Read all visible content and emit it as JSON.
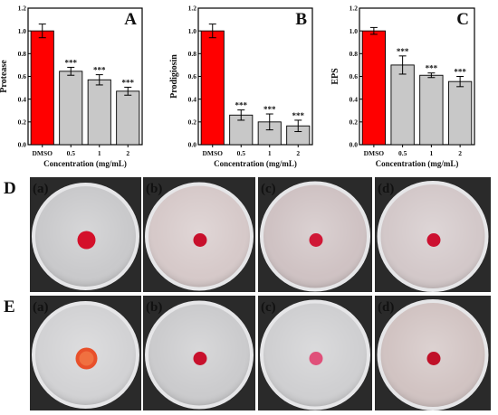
{
  "chart_data": [
    {
      "type": "bar",
      "panel_label": "A",
      "ylabel": "Protease",
      "xlabel": "Concentration (mg/mL)",
      "categories": [
        "DMSO",
        "0.5",
        "1",
        "2"
      ],
      "values": [
        1.0,
        0.645,
        0.57,
        0.47
      ],
      "errors": [
        0.06,
        0.035,
        0.045,
        0.035
      ],
      "significance": [
        "",
        "***",
        "***",
        "***"
      ],
      "ylim": [
        0,
        1.2
      ],
      "yticks": [
        "0.0",
        "0.2",
        "0.4",
        "0.6",
        "0.8",
        "1.0",
        "1.2"
      ],
      "colors": [
        "#ff0000",
        "#c8c8c8",
        "#c8c8c8",
        "#c8c8c8"
      ]
    },
    {
      "type": "bar",
      "panel_label": "B",
      "ylabel": "Prodigiosin",
      "xlabel": "Concentration (mg/mL)",
      "categories": [
        "DMSO",
        "0.5",
        "1",
        "2"
      ],
      "values": [
        1.0,
        0.26,
        0.2,
        0.165
      ],
      "errors": [
        0.06,
        0.045,
        0.07,
        0.05
      ],
      "significance": [
        "",
        "***",
        "***",
        "***"
      ],
      "ylim": [
        0,
        1.2
      ],
      "yticks": [
        "0.0",
        "0.2",
        "0.4",
        "0.6",
        "0.8",
        "1.0",
        "1.2"
      ],
      "colors": [
        "#ff0000",
        "#c8c8c8",
        "#c8c8c8",
        "#c8c8c8"
      ]
    },
    {
      "type": "bar",
      "panel_label": "C",
      "ylabel": "EPS",
      "xlabel": "Concentration (mg/mL)",
      "categories": [
        "DMSO",
        "0.5",
        "1",
        "2"
      ],
      "values": [
        1.0,
        0.7,
        0.61,
        0.555
      ],
      "errors": [
        0.03,
        0.08,
        0.02,
        0.045
      ],
      "significance": [
        "",
        "***",
        "***",
        "***"
      ],
      "ylim": [
        0,
        1.2
      ],
      "yticks": [
        "0.0",
        "0.2",
        "0.4",
        "0.6",
        "0.8",
        "1.0",
        "1.2"
      ],
      "colors": [
        "#ff0000",
        "#c8c8c8",
        "#c8c8c8",
        "#c8c8c8"
      ]
    }
  ],
  "photo_rows": [
    {
      "label": "D",
      "plates": [
        "(a)",
        "(b)",
        "(c)",
        "(d)"
      ],
      "colony_colors": [
        "#d4102a",
        "#c8102c",
        "#d01836",
        "#cc1030"
      ],
      "agar_colors": [
        "#c9c9cb",
        "#d6c9c9",
        "#cfc2c3",
        "#d3c8c9"
      ]
    },
    {
      "label": "E",
      "plates": [
        "(a)",
        "(b)",
        "(c)",
        "(d)"
      ],
      "colony_colors": [
        "#e8502a",
        "#c8102c",
        "#e0507a",
        "#c01028"
      ],
      "agar_colors": [
        "#d2d2d4",
        "#cbcbcd",
        "#cfcfd1",
        "#d1c3c2"
      ]
    }
  ]
}
